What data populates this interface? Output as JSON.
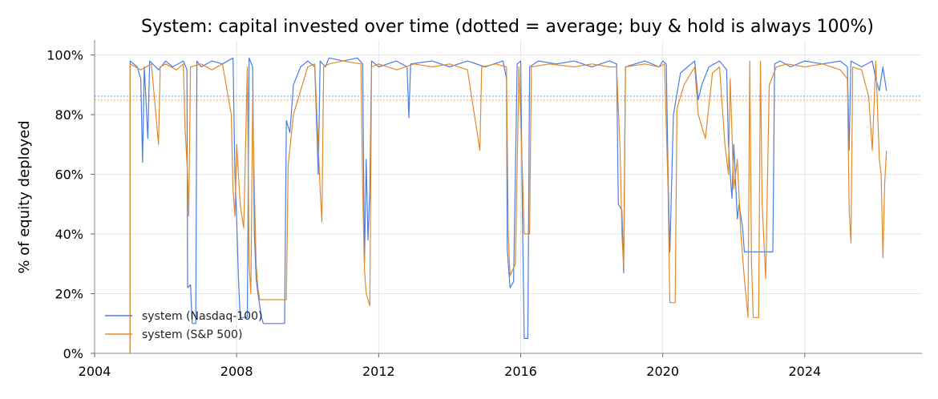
{
  "chart_data": {
    "type": "line",
    "title": "System: capital invested over time (dotted = average; buy & hold is always 100%)",
    "xlabel": "",
    "ylabel": "% of equity deployed",
    "xlim": [
      2004,
      2027.3
    ],
    "ylim": [
      0,
      105
    ],
    "x_ticks": [
      2004,
      2008,
      2012,
      2016,
      2020,
      2024
    ],
    "y_ticks": [
      0,
      20,
      40,
      60,
      80,
      100
    ],
    "y_tick_suffix": "%",
    "grid": true,
    "legend_position": "lower-left",
    "series": [
      {
        "name": "system (Nasdaq-100)",
        "color": "#4a7de3",
        "average": 86.2,
        "points": [
          [
            2005.0,
            0
          ],
          [
            2005.0,
            98
          ],
          [
            2005.2,
            96
          ],
          [
            2005.3,
            92
          ],
          [
            2005.35,
            64
          ],
          [
            2005.4,
            96
          ],
          [
            2005.5,
            72
          ],
          [
            2005.55,
            98
          ],
          [
            2005.8,
            95
          ],
          [
            2006.0,
            98
          ],
          [
            2006.2,
            96
          ],
          [
            2006.5,
            98
          ],
          [
            2006.6,
            95
          ],
          [
            2006.62,
            22
          ],
          [
            2006.7,
            23
          ],
          [
            2006.75,
            10
          ],
          [
            2006.85,
            10
          ],
          [
            2006.88,
            98
          ],
          [
            2007.0,
            96
          ],
          [
            2007.3,
            98
          ],
          [
            2007.6,
            97
          ],
          [
            2007.9,
            99
          ],
          [
            2007.95,
            60
          ],
          [
            2008.0,
            45
          ],
          [
            2008.05,
            25
          ],
          [
            2008.1,
            12
          ],
          [
            2008.3,
            12
          ],
          [
            2008.35,
            99
          ],
          [
            2008.45,
            96
          ],
          [
            2008.5,
            40
          ],
          [
            2008.55,
            25
          ],
          [
            2008.6,
            20
          ],
          [
            2008.7,
            12
          ],
          [
            2008.75,
            10
          ],
          [
            2009.35,
            10
          ],
          [
            2009.4,
            78
          ],
          [
            2009.5,
            74
          ],
          [
            2009.6,
            90
          ],
          [
            2009.8,
            96
          ],
          [
            2010.0,
            98
          ],
          [
            2010.2,
            96
          ],
          [
            2010.3,
            60
          ],
          [
            2010.35,
            98
          ],
          [
            2010.5,
            96
          ],
          [
            2010.6,
            99
          ],
          [
            2011.0,
            98
          ],
          [
            2011.4,
            99
          ],
          [
            2011.55,
            97
          ],
          [
            2011.6,
            30
          ],
          [
            2011.65,
            65
          ],
          [
            2011.7,
            38
          ],
          [
            2011.75,
            55
          ],
          [
            2011.8,
            98
          ],
          [
            2012.0,
            96
          ],
          [
            2012.5,
            98
          ],
          [
            2012.8,
            96
          ],
          [
            2012.85,
            79
          ],
          [
            2012.9,
            97
          ],
          [
            2013.5,
            98
          ],
          [
            2014.0,
            96
          ],
          [
            2014.5,
            98
          ],
          [
            2015.0,
            96
          ],
          [
            2015.5,
            98
          ],
          [
            2015.6,
            92
          ],
          [
            2015.62,
            35
          ],
          [
            2015.7,
            22
          ],
          [
            2015.8,
            24
          ],
          [
            2015.9,
            97
          ],
          [
            2016.0,
            98
          ],
          [
            2016.05,
            45
          ],
          [
            2016.1,
            5
          ],
          [
            2016.2,
            5
          ],
          [
            2016.25,
            96
          ],
          [
            2016.5,
            98
          ],
          [
            2017.0,
            97
          ],
          [
            2017.5,
            98
          ],
          [
            2018.0,
            96
          ],
          [
            2018.5,
            98
          ],
          [
            2018.7,
            97
          ],
          [
            2018.75,
            50
          ],
          [
            2018.85,
            48
          ],
          [
            2018.9,
            27
          ],
          [
            2018.95,
            96
          ],
          [
            2019.5,
            98
          ],
          [
            2019.9,
            96
          ],
          [
            2020.0,
            98
          ],
          [
            2020.1,
            97
          ],
          [
            2020.15,
            60
          ],
          [
            2020.2,
            34
          ],
          [
            2020.3,
            80
          ],
          [
            2020.5,
            94
          ],
          [
            2020.7,
            96
          ],
          [
            2020.9,
            98
          ],
          [
            2021.0,
            85
          ],
          [
            2021.1,
            90
          ],
          [
            2021.3,
            96
          ],
          [
            2021.6,
            98
          ],
          [
            2021.8,
            95
          ],
          [
            2021.85,
            70
          ],
          [
            2021.9,
            60
          ],
          [
            2021.95,
            52
          ],
          [
            2022.0,
            70
          ],
          [
            2022.1,
            45
          ],
          [
            2022.15,
            50
          ],
          [
            2022.25,
            42
          ],
          [
            2022.3,
            34
          ],
          [
            2022.4,
            34
          ],
          [
            2022.6,
            34
          ],
          [
            2022.8,
            34
          ],
          [
            2023.0,
            34
          ],
          [
            2023.1,
            34
          ],
          [
            2023.15,
            97
          ],
          [
            2023.3,
            98
          ],
          [
            2023.6,
            96
          ],
          [
            2024.0,
            98
          ],
          [
            2024.5,
            97
          ],
          [
            2025.0,
            98
          ],
          [
            2025.2,
            96
          ],
          [
            2025.25,
            68
          ],
          [
            2025.3,
            98
          ],
          [
            2025.6,
            96
          ],
          [
            2025.9,
            98
          ],
          [
            2026.0,
            92
          ],
          [
            2026.1,
            88
          ],
          [
            2026.2,
            96
          ],
          [
            2026.3,
            88
          ]
        ]
      },
      {
        "name": "system (S&P 500)",
        "color": "#e08a2c",
        "average": 84.9,
        "points": [
          [
            2005.0,
            0
          ],
          [
            2005.0,
            97
          ],
          [
            2005.3,
            95
          ],
          [
            2005.6,
            97
          ],
          [
            2005.8,
            70
          ],
          [
            2005.85,
            96
          ],
          [
            2006.0,
            97
          ],
          [
            2006.3,
            95
          ],
          [
            2006.5,
            97
          ],
          [
            2006.55,
            75
          ],
          [
            2006.62,
            60
          ],
          [
            2006.65,
            46
          ],
          [
            2006.7,
            96
          ],
          [
            2007.0,
            97
          ],
          [
            2007.3,
            95
          ],
          [
            2007.6,
            97
          ],
          [
            2007.85,
            80
          ],
          [
            2007.9,
            55
          ],
          [
            2007.95,
            46
          ],
          [
            2008.0,
            70
          ],
          [
            2008.1,
            50
          ],
          [
            2008.2,
            42
          ],
          [
            2008.3,
            96
          ],
          [
            2008.35,
            30
          ],
          [
            2008.4,
            20
          ],
          [
            2008.45,
            85
          ],
          [
            2008.5,
            55
          ],
          [
            2008.55,
            30
          ],
          [
            2008.6,
            22
          ],
          [
            2008.65,
            18
          ],
          [
            2009.4,
            18
          ],
          [
            2009.45,
            63
          ],
          [
            2009.6,
            80
          ],
          [
            2009.8,
            88
          ],
          [
            2010.0,
            96
          ],
          [
            2010.2,
            97
          ],
          [
            2010.35,
            55
          ],
          [
            2010.4,
            44
          ],
          [
            2010.45,
            96
          ],
          [
            2010.6,
            97
          ],
          [
            2011.0,
            98
          ],
          [
            2011.5,
            97
          ],
          [
            2011.55,
            55
          ],
          [
            2011.6,
            28
          ],
          [
            2011.65,
            20
          ],
          [
            2011.75,
            16
          ],
          [
            2011.8,
            96
          ],
          [
            2012.0,
            97
          ],
          [
            2012.5,
            95
          ],
          [
            2013.0,
            97
          ],
          [
            2013.5,
            96
          ],
          [
            2014.0,
            97
          ],
          [
            2014.5,
            95
          ],
          [
            2014.85,
            68
          ],
          [
            2014.9,
            96
          ],
          [
            2015.3,
            97
          ],
          [
            2015.6,
            96
          ],
          [
            2015.65,
            40
          ],
          [
            2015.7,
            26
          ],
          [
            2015.85,
            30
          ],
          [
            2015.95,
            96
          ],
          [
            2016.05,
            60
          ],
          [
            2016.1,
            40
          ],
          [
            2016.25,
            40
          ],
          [
            2016.3,
            96
          ],
          [
            2016.8,
            97
          ],
          [
            2017.5,
            96
          ],
          [
            2018.0,
            97
          ],
          [
            2018.5,
            96
          ],
          [
            2018.7,
            96
          ],
          [
            2018.8,
            68
          ],
          [
            2018.85,
            40
          ],
          [
            2018.9,
            29
          ],
          [
            2018.95,
            96
          ],
          [
            2019.5,
            97
          ],
          [
            2019.9,
            96
          ],
          [
            2020.05,
            97
          ],
          [
            2020.15,
            55
          ],
          [
            2020.2,
            17
          ],
          [
            2020.35,
            17
          ],
          [
            2020.4,
            82
          ],
          [
            2020.6,
            90
          ],
          [
            2020.9,
            96
          ],
          [
            2021.0,
            80
          ],
          [
            2021.2,
            72
          ],
          [
            2021.4,
            94
          ],
          [
            2021.6,
            96
          ],
          [
            2021.75,
            70
          ],
          [
            2021.85,
            60
          ],
          [
            2021.9,
            92
          ],
          [
            2022.0,
            55
          ],
          [
            2022.1,
            65
          ],
          [
            2022.2,
            40
          ],
          [
            2022.3,
            25
          ],
          [
            2022.4,
            12
          ],
          [
            2022.45,
            98
          ],
          [
            2022.5,
            30
          ],
          [
            2022.55,
            12
          ],
          [
            2022.7,
            12
          ],
          [
            2022.75,
            98
          ],
          [
            2022.8,
            50
          ],
          [
            2022.9,
            25
          ],
          [
            2023.0,
            90
          ],
          [
            2023.2,
            96
          ],
          [
            2023.5,
            97
          ],
          [
            2024.0,
            96
          ],
          [
            2024.5,
            97
          ],
          [
            2025.0,
            95
          ],
          [
            2025.2,
            92
          ],
          [
            2025.25,
            48
          ],
          [
            2025.3,
            37
          ],
          [
            2025.35,
            96
          ],
          [
            2025.6,
            95
          ],
          [
            2025.8,
            86
          ],
          [
            2025.9,
            68
          ],
          [
            2026.0,
            98
          ],
          [
            2026.1,
            65
          ],
          [
            2026.15,
            60
          ],
          [
            2026.2,
            32
          ],
          [
            2026.25,
            57
          ],
          [
            2026.3,
            68
          ]
        ]
      }
    ]
  }
}
